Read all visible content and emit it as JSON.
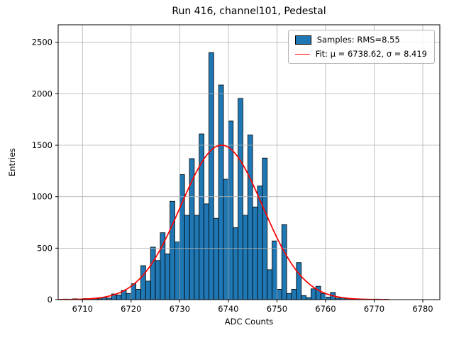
{
  "title": "Run 416, channel101, Pedestal",
  "xlabel": "ADC Counts",
  "ylabel": "Entries",
  "legend": {
    "samples_label": "Samples: RMS=8.55",
    "fit_label": "Fit: μ = 6738.62, σ = 8.419"
  },
  "colors": {
    "bar": "#1f77b4",
    "bar_edge": "#000000",
    "fit": "#ff0000",
    "grid": "#b0b0b0",
    "frame": "#000000"
  },
  "chart_data": {
    "type": "bar",
    "title": "Run 416, channel101, Pedestal",
    "xlabel": "ADC Counts",
    "ylabel": "Entries",
    "legend_entries": [
      "Samples: RMS=8.55",
      "Fit: μ = 6738.62, σ = 8.419"
    ],
    "legend_position": "upper right",
    "grid": true,
    "rms": 8.55,
    "bin_start": 6704,
    "bin_width": 1,
    "values": [
      8,
      0,
      5,
      0,
      8,
      0,
      10,
      5,
      12,
      8,
      20,
      15,
      55,
      45,
      90,
      60,
      155,
      100,
      330,
      180,
      510,
      380,
      650,
      445,
      955,
      560,
      1215,
      820,
      1370,
      820,
      1610,
      930,
      2400,
      790,
      2085,
      1170,
      1735,
      700,
      1955,
      820,
      1600,
      900,
      1105,
      1375,
      290,
      570,
      100,
      730,
      60,
      100,
      360,
      40,
      20,
      105,
      130,
      60,
      25,
      70,
      15,
      20,
      10,
      8,
      5,
      5,
      3,
      3,
      5,
      0,
      3
    ],
    "fit": {
      "mu": 6738.62,
      "sigma": 8.419,
      "amplitude": 1500,
      "x_range": [
        6704,
        6773
      ]
    },
    "xlim": [
      6705,
      6783.5
    ],
    "ylim": [
      0,
      2670
    ],
    "xticks": [
      6710,
      6720,
      6730,
      6740,
      6750,
      6760,
      6770,
      6780
    ],
    "yticks": [
      0,
      500,
      1000,
      1500,
      2000,
      2500
    ]
  }
}
